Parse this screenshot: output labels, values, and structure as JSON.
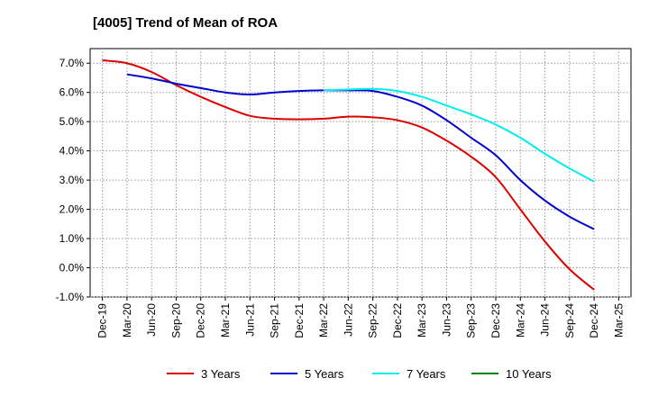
{
  "chart_data": {
    "type": "line",
    "title": "[4005]  Trend of Mean of ROA",
    "xlabel": "",
    "ylabel": "",
    "ylim": [
      -1.0,
      7.5
    ],
    "yticks": [
      -1.0,
      0.0,
      1.0,
      2.0,
      3.0,
      4.0,
      5.0,
      6.0,
      7.0
    ],
    "ytick_labels": [
      "-1.0%",
      "0.0%",
      "1.0%",
      "2.0%",
      "3.0%",
      "4.0%",
      "5.0%",
      "6.0%",
      "7.0%"
    ],
    "categories": [
      "Dec-19",
      "Mar-20",
      "Jun-20",
      "Sep-20",
      "Dec-20",
      "Mar-21",
      "Jun-21",
      "Sep-21",
      "Dec-21",
      "Mar-22",
      "Jun-22",
      "Sep-22",
      "Dec-22",
      "Mar-23",
      "Jun-23",
      "Sep-23",
      "Dec-23",
      "Mar-24",
      "Jun-24",
      "Sep-24",
      "Dec-24",
      "Mar-25"
    ],
    "grid": true,
    "legend_position": "bottom",
    "series": [
      {
        "name": "3 Years",
        "color": "#dd0000",
        "values": [
          7.1,
          7.0,
          6.7,
          6.25,
          5.85,
          5.5,
          5.2,
          5.1,
          5.08,
          5.1,
          5.17,
          5.15,
          5.05,
          4.8,
          4.35,
          3.8,
          3.1,
          2.0,
          0.9,
          -0.05,
          -0.75,
          null
        ]
      },
      {
        "name": "5 Years",
        "color": "#0000cc",
        "values": [
          null,
          6.62,
          6.48,
          6.3,
          6.15,
          6.0,
          5.93,
          6.0,
          6.05,
          6.07,
          6.07,
          6.05,
          5.85,
          5.55,
          5.05,
          4.45,
          3.85,
          3.0,
          2.3,
          1.75,
          1.32,
          null
        ]
      },
      {
        "name": "7 Years",
        "color": "#00eeee",
        "values": [
          null,
          null,
          null,
          null,
          null,
          null,
          null,
          null,
          null,
          6.07,
          6.1,
          6.12,
          6.05,
          5.85,
          5.55,
          5.25,
          4.9,
          4.45,
          3.9,
          3.4,
          2.95,
          null
        ]
      },
      {
        "name": "10 Years",
        "color": "#008800",
        "values": [
          null,
          null,
          null,
          null,
          null,
          null,
          null,
          null,
          null,
          null,
          null,
          null,
          null,
          null,
          null,
          null,
          null,
          null,
          null,
          null,
          null,
          null
        ]
      }
    ]
  }
}
